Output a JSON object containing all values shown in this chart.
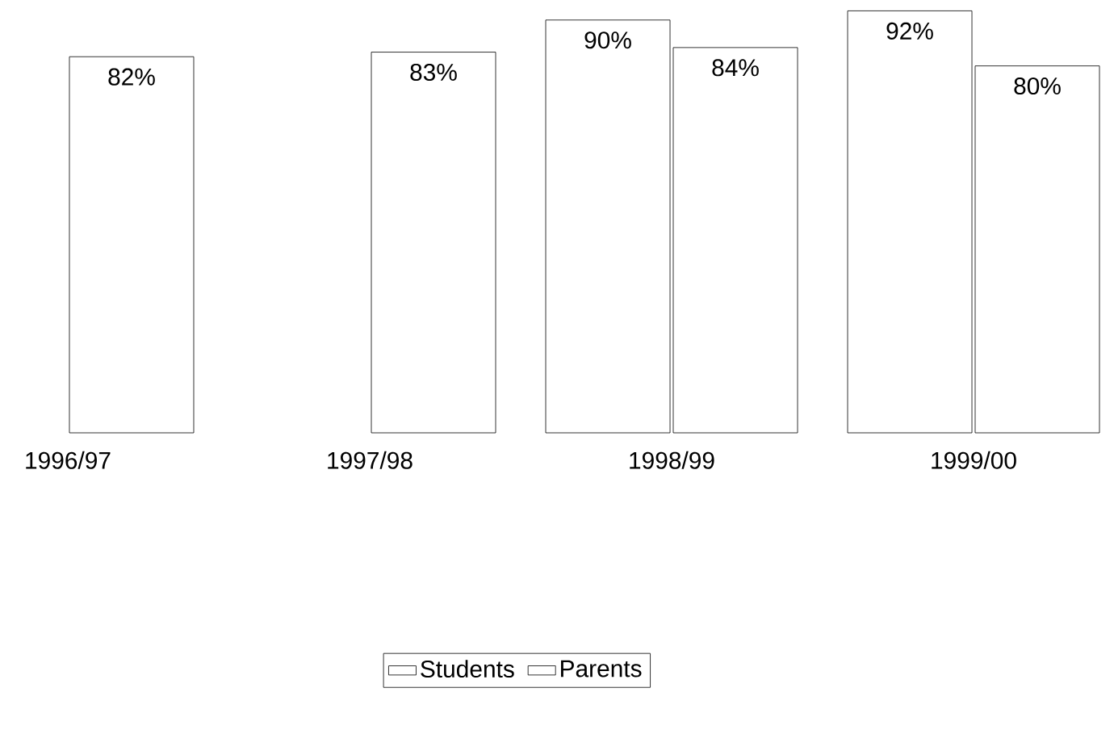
{
  "chart_data": {
    "type": "bar",
    "categories": [
      "1996/97",
      "1997/98",
      "1998/99",
      "1999/00"
    ],
    "series": [
      {
        "name": "Students",
        "color": "#ffffff",
        "values": [
          null,
          null,
          90,
          92
        ],
        "value_labels": [
          null,
          null,
          "90%",
          "92%"
        ]
      },
      {
        "name": "Parents",
        "color": "#ffffff",
        "values": [
          82,
          83,
          84,
          80
        ],
        "value_labels": [
          "82%",
          "83%",
          "84%",
          "80%"
        ]
      }
    ],
    "legend": "bottom"
  }
}
